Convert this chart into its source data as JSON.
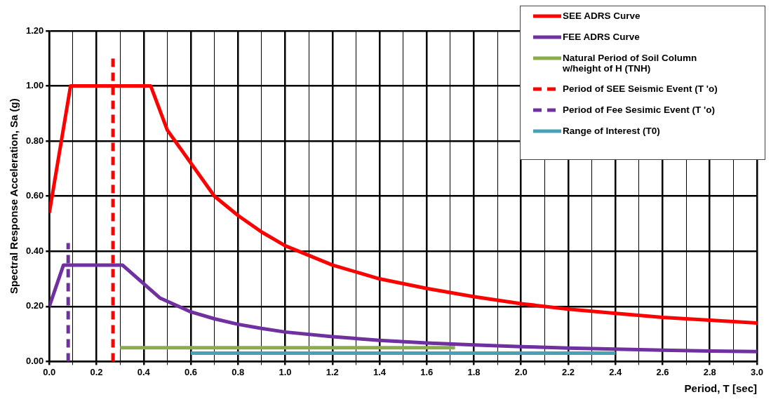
{
  "chart_data": {
    "type": "line",
    "xlabel": "Period, T [sec]",
    "ylabel": "Spectral Response Acceleration, Sa (g)",
    "xlim": [
      0,
      3
    ],
    "ylim": [
      0,
      1.2
    ],
    "xticks": [
      {
        "value": 0,
        "label": "0.0"
      },
      {
        "value": 0.1,
        "label": null
      },
      {
        "value": 0.2,
        "label": "0.2"
      },
      {
        "value": 0.3,
        "label": null
      },
      {
        "value": 0.4,
        "label": "0.4"
      },
      {
        "value": 0.5,
        "label": null
      },
      {
        "value": 0.6,
        "label": "0.6"
      },
      {
        "value": 0.7,
        "label": null
      },
      {
        "value": 0.8,
        "label": "0.8"
      },
      {
        "value": 0.9,
        "label": null
      },
      {
        "value": 1,
        "label": "1.0"
      },
      {
        "value": 1.1,
        "label": null
      },
      {
        "value": 1.2,
        "label": "1.2"
      },
      {
        "value": 1.3,
        "label": null
      },
      {
        "value": 1.4,
        "label": "1.4"
      },
      {
        "value": 1.5,
        "label": null
      },
      {
        "value": 1.6,
        "label": "1.6"
      },
      {
        "value": 1.7,
        "label": null
      },
      {
        "value": 1.8,
        "label": "1.8"
      },
      {
        "value": 1.9,
        "label": null
      },
      {
        "value": 2,
        "label": "2.0"
      },
      {
        "value": 2.1,
        "label": null
      },
      {
        "value": 2.2,
        "label": "2.2"
      },
      {
        "value": 2.3,
        "label": null
      },
      {
        "value": 2.4,
        "label": "2.4"
      },
      {
        "value": 2.5,
        "label": null
      },
      {
        "value": 2.6,
        "label": "2.6"
      },
      {
        "value": 2.7,
        "label": null
      },
      {
        "value": 2.8,
        "label": "2.8"
      },
      {
        "value": 2.9,
        "label": null
      },
      {
        "value": 3,
        "label": "3.0"
      }
    ],
    "yticks": [
      {
        "value": 0,
        "label": "0.00"
      },
      {
        "value": 0.2,
        "label": "0.20"
      },
      {
        "value": 0.4,
        "label": "0.40"
      },
      {
        "value": 0.6,
        "label": "0.60"
      },
      {
        "value": 0.8,
        "label": "0.80"
      },
      {
        "value": 1,
        "label": "1.00"
      },
      {
        "value": 1.2,
        "label": "1.20"
      }
    ],
    "grid": true,
    "legend": "top right",
    "marker": "none",
    "series": [
      {
        "name": "SEE ADRS Curve",
        "color": "#ff0000",
        "line_style": "solid",
        "x": [
          0,
          0.09,
          0.43,
          0.5,
          0.6,
          0.7,
          0.8,
          0.9,
          1.0,
          1.2,
          1.4,
          1.6,
          1.8,
          2.0,
          2.2,
          2.4,
          2.6,
          2.8,
          3.0
        ],
        "values": [
          0.54,
          1.0,
          1.0,
          0.84,
          0.72,
          0.6,
          0.53,
          0.47,
          0.42,
          0.35,
          0.3,
          0.265,
          0.235,
          0.21,
          0.19,
          0.175,
          0.16,
          0.15,
          0.14
        ]
      },
      {
        "name": "FEE ADRS Curve",
        "color": "#7030a0",
        "line_style": "solid",
        "x": [
          0,
          0.06,
          0.31,
          0.47,
          0.6,
          0.7,
          0.8,
          0.9,
          1.0,
          1.2,
          1.4,
          1.6,
          1.8,
          2.0,
          2.2,
          2.4,
          2.6,
          2.8,
          3.0
        ],
        "values": [
          0.2,
          0.35,
          0.35,
          0.23,
          0.18,
          0.155,
          0.135,
          0.12,
          0.107,
          0.09,
          0.077,
          0.067,
          0.06,
          0.054,
          0.049,
          0.045,
          0.041,
          0.038,
          0.036
        ]
      },
      {
        "name": "Natural Period of Soil Column w/height of H (TNH)",
        "color": "#8aac4e",
        "line_style": "solid",
        "x": [
          0.3,
          1.72
        ],
        "values": [
          0.05,
          0.05
        ]
      },
      {
        "name": "Period of SEE Seismic Event (T 'o)",
        "color": "#ff0000",
        "line_style": "dashed",
        "x": [
          0.27,
          0.27
        ],
        "values": [
          0,
          1.1
        ]
      },
      {
        "name": "Period of Fee Sesimic Event (T 'o)",
        "color": "#7030a0",
        "line_style": "dashed",
        "x": [
          0.08,
          0.08
        ],
        "values": [
          0,
          0.43
        ]
      },
      {
        "name": "Range of Interest (T0)",
        "color": "#4aa0b5",
        "line_style": "solid",
        "x": [
          0.6,
          2.4
        ],
        "values": [
          0.03,
          0.03
        ]
      }
    ]
  }
}
